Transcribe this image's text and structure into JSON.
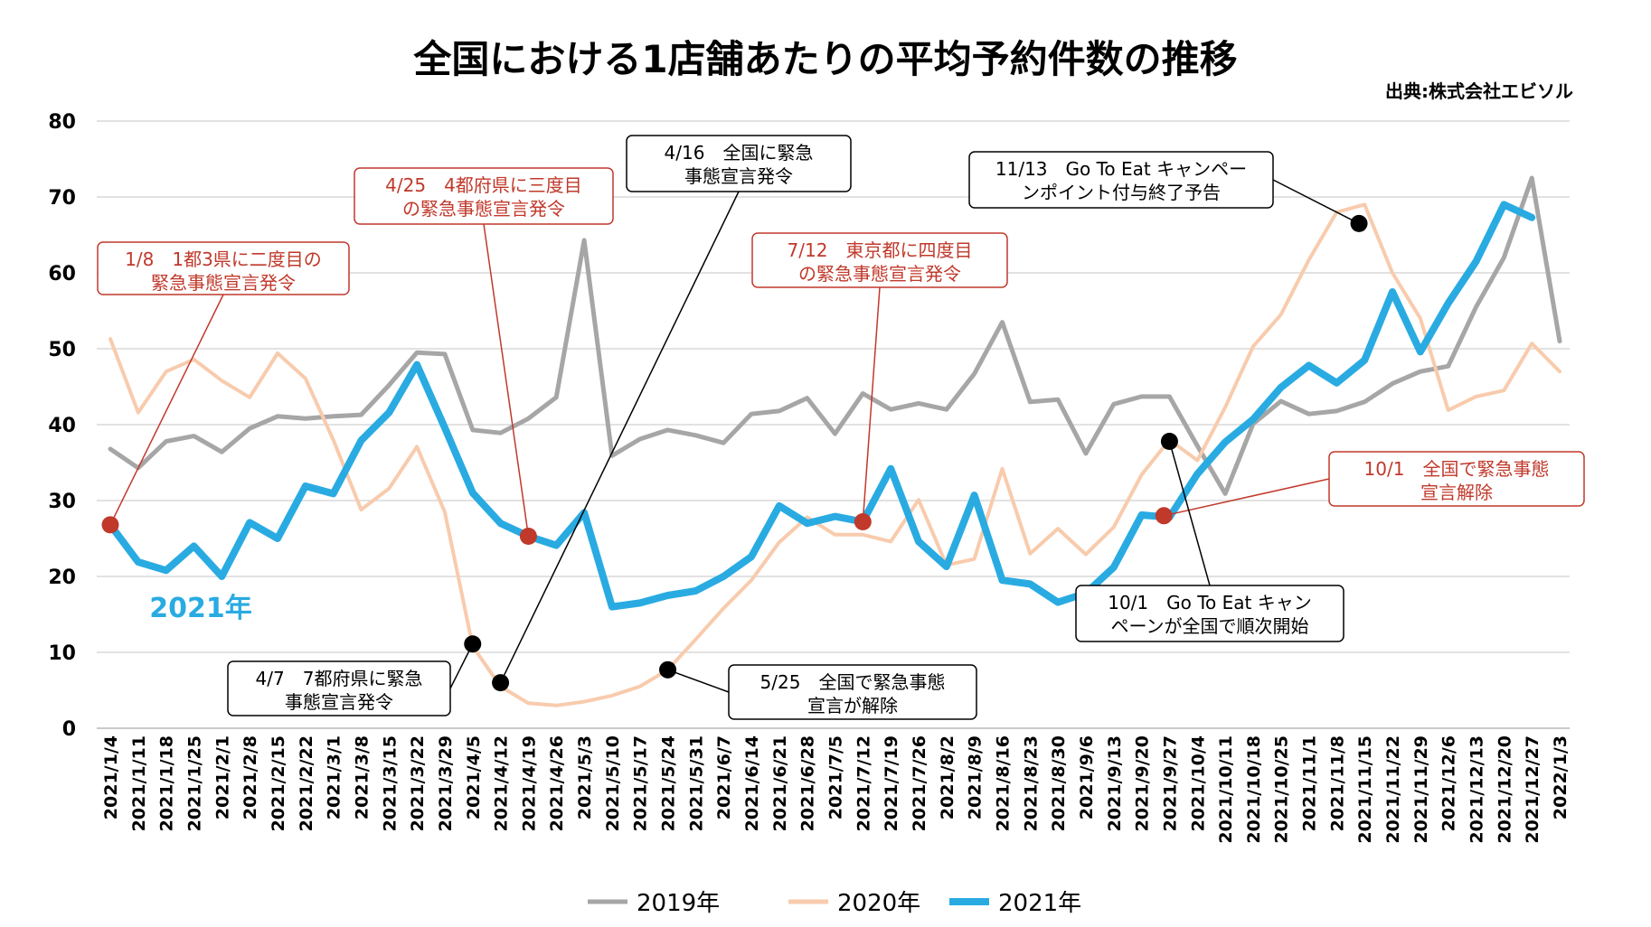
{
  "chart_data": {
    "type": "line",
    "title": "全国における1店舗あたりの平均予約件数の推移",
    "source": "出典:株式会社エビソル",
    "ylim": [
      0,
      80
    ],
    "yticks": [
      0,
      10,
      20,
      30,
      40,
      50,
      60,
      70,
      80
    ],
    "grid": true,
    "legend_position": "bottom-center",
    "categories": [
      "2021/1/4",
      "2021/1/11",
      "2021/1/18",
      "2021/1/25",
      "2021/2/1",
      "2021/2/8",
      "2021/2/15",
      "2021/2/22",
      "2021/3/1",
      "2021/3/8",
      "2021/3/15",
      "2021/3/22",
      "2021/3/29",
      "2021/4/5",
      "2021/4/12",
      "2021/4/19",
      "2021/4/26",
      "2021/5/3",
      "2021/5/10",
      "2021/5/17",
      "2021/5/24",
      "2021/5/31",
      "2021/6/7",
      "2021/6/14",
      "2021/6/21",
      "2021/6/28",
      "2021/7/5",
      "2021/7/12",
      "2021/7/19",
      "2021/7/26",
      "2021/8/2",
      "2021/8/9",
      "2021/8/16",
      "2021/8/23",
      "2021/8/30",
      "2021/9/6",
      "2021/9/13",
      "2021/9/20",
      "2021/9/27",
      "2021/10/4",
      "2021/10/11",
      "2021/10/18",
      "2021/10/25",
      "2021/11/1",
      "2021/11/8",
      "2021/11/15",
      "2021/11/22",
      "2021/11/29",
      "2021/12/6",
      "2021/12/13",
      "2021/12/20",
      "2021/12/27",
      "2022/1/3"
    ],
    "series": [
      {
        "name": "2019年",
        "color": "#a6a6a6",
        "values": [
          36.8,
          34.3,
          37.8,
          38.5,
          36.4,
          39.5,
          41.1,
          40.8,
          41.1,
          41.3,
          45.2,
          49.5,
          49.3,
          39.3,
          38.9,
          40.8,
          43.6,
          64.3,
          35.9,
          38.1,
          39.3,
          38.6,
          37.6,
          41.4,
          41.8,
          43.5,
          38.8,
          44.1,
          42.0,
          42.8,
          42.0,
          46.7,
          53.5,
          43.0,
          43.3,
          36.2,
          42.7,
          43.7,
          43.7,
          37.2,
          30.9,
          40.1,
          43.1,
          41.4,
          41.8,
          43.0,
          45.4,
          47.0,
          47.7,
          55.5,
          62.0,
          72.5,
          51.0
        ]
      },
      {
        "name": "2020年",
        "color": "#f8cbad",
        "values": [
          51.3,
          41.6,
          47.0,
          48.6,
          45.8,
          43.6,
          49.4,
          46.1,
          38.0,
          28.8,
          31.6,
          37.1,
          28.5,
          10.8,
          5.5,
          3.3,
          3.0,
          3.5,
          4.3,
          5.5,
          7.7,
          11.7,
          15.8,
          19.5,
          24.5,
          27.8,
          25.5,
          25.5,
          24.6,
          30.1,
          21.5,
          22.3,
          34.2,
          23.0,
          26.3,
          22.9,
          26.5,
          33.4,
          38.0,
          35.3,
          42.3,
          50.3,
          54.5,
          61.7,
          68.0,
          69.0,
          60.0,
          54.0,
          41.9,
          43.7,
          44.5,
          50.7,
          47.0
        ]
      },
      {
        "name": "2021年",
        "color": "#29abe2",
        "values": [
          26.8,
          21.9,
          20.8,
          24.0,
          20.0,
          27.1,
          25.0,
          31.9,
          30.9,
          37.9,
          41.6,
          47.9,
          39.6,
          31.0,
          27.0,
          25.3,
          24.1,
          28.4,
          16.0,
          16.5,
          17.5,
          18.1,
          20.0,
          22.6,
          29.3,
          27.0,
          27.9,
          27.2,
          34.2,
          24.6,
          21.3,
          30.7,
          19.5,
          19.0,
          16.6,
          17.8,
          21.2,
          28.1,
          27.8,
          33.5,
          37.7,
          40.7,
          44.9,
          47.8,
          45.5,
          48.5,
          57.5,
          49.6,
          56.0,
          61.5,
          69.0,
          67.3,
          null
        ]
      }
    ],
    "series_label": "2021年",
    "annotations": [
      {
        "text": [
          "1/8　1都3県に二度目の",
          "緊急事態宣言発令"
        ],
        "color": "red",
        "index": 0,
        "value": 26.8,
        "dot": "red"
      },
      {
        "text": [
          "4/25　4都府県に三度目",
          "の緊急事態宣言発令"
        ],
        "color": "red",
        "index": 15,
        "value": 25.3,
        "dot": "red"
      },
      {
        "text": [
          "4/16　全国に緊急",
          "事態宣言発令"
        ],
        "color": "black",
        "index": 14,
        "value": 6.0,
        "dot": "black"
      },
      {
        "text": [
          "7/12　東京都に四度目",
          "の緊急事態宣言発令"
        ],
        "color": "red",
        "index": 27,
        "value": 27.2,
        "dot": "red"
      },
      {
        "text": [
          "11/13　Go To Eat キャンペー",
          "ンポイント付与終了予告"
        ],
        "color": "black",
        "index": 44.8,
        "value": 66.5,
        "dot": "black"
      },
      {
        "text": [
          "10/1　全国で緊急事態",
          "宣言解除"
        ],
        "color": "red",
        "index": 37.8,
        "value": 28.0,
        "dot": "red"
      },
      {
        "text": [
          "10/1　Go To Eat キャン",
          "ペーンが全国で順次開始"
        ],
        "color": "black",
        "index": 38.0,
        "value": 37.8,
        "dot": "black"
      },
      {
        "text": [
          "4/7　7都府県に緊急",
          "事態宣言発令"
        ],
        "color": "black",
        "index": 13.0,
        "value": 11.1,
        "dot": "black"
      },
      {
        "text": [
          "5/25　全国で緊急事態",
          "宣言が解除"
        ],
        "color": "black",
        "index": 20.0,
        "value": 7.7,
        "dot": "black"
      }
    ]
  }
}
